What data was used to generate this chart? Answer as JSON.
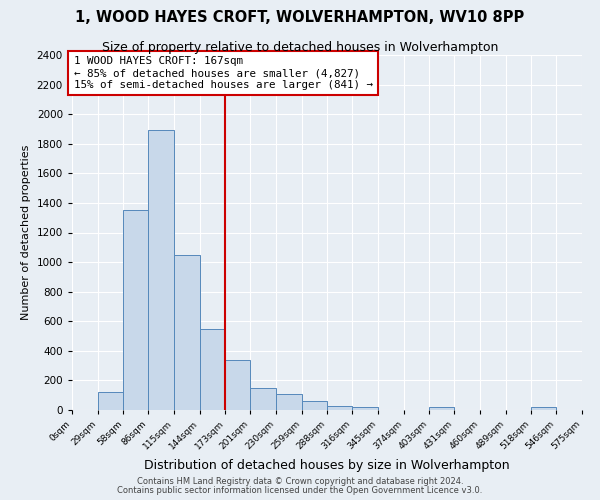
{
  "title": "1, WOOD HAYES CROFT, WOLVERHAMPTON, WV10 8PP",
  "subtitle": "Size of property relative to detached houses in Wolverhampton",
  "xlabel": "Distribution of detached houses by size in Wolverhampton",
  "ylabel": "Number of detached properties",
  "bin_labels": [
    "0sqm",
    "29sqm",
    "58sqm",
    "86sqm",
    "115sqm",
    "144sqm",
    "173sqm",
    "201sqm",
    "230sqm",
    "259sqm",
    "288sqm",
    "316sqm",
    "345sqm",
    "374sqm",
    "403sqm",
    "431sqm",
    "460sqm",
    "489sqm",
    "518sqm",
    "546sqm",
    "575sqm"
  ],
  "bin_edges": [
    0,
    29,
    58,
    86,
    115,
    144,
    173,
    201,
    230,
    259,
    288,
    316,
    345,
    374,
    403,
    431,
    460,
    489,
    518,
    546,
    575
  ],
  "bar_heights": [
    0,
    125,
    1350,
    1890,
    1050,
    550,
    340,
    150,
    110,
    60,
    30,
    20,
    0,
    0,
    20,
    0,
    0,
    0,
    20,
    0
  ],
  "bar_color": "#c8d8ea",
  "bar_edge_color": "#5588bb",
  "property_line_x": 173,
  "property_line_color": "#cc0000",
  "annotation_text": "1 WOOD HAYES CROFT: 167sqm\n← 85% of detached houses are smaller (4,827)\n15% of semi-detached houses are larger (841) →",
  "annotation_box_facecolor": "#ffffff",
  "annotation_box_edgecolor": "#cc0000",
  "ylim": [
    0,
    2400
  ],
  "yticks": [
    0,
    200,
    400,
    600,
    800,
    1000,
    1200,
    1400,
    1600,
    1800,
    2000,
    2200,
    2400
  ],
  "background_color": "#e8eef4",
  "grid_color": "#ffffff",
  "footer_line1": "Contains HM Land Registry data © Crown copyright and database right 2024.",
  "footer_line2": "Contains public sector information licensed under the Open Government Licence v3.0."
}
